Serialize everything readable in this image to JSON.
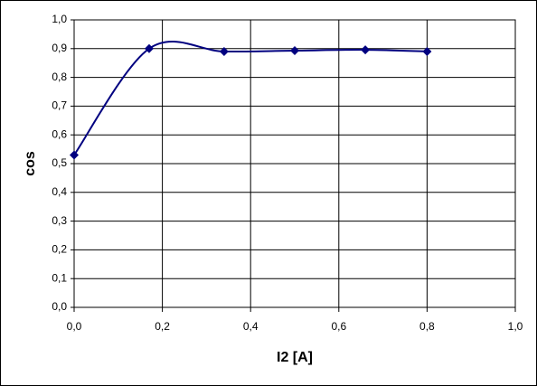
{
  "chart_data": {
    "type": "line",
    "x_label": "I2 [A]",
    "y_label": "cos",
    "x": [
      0,
      0.17,
      0.34,
      0.5,
      0.66,
      0.8
    ],
    "series": [
      {
        "name": "cos",
        "color": "#000080",
        "values": [
          0.53,
          0.9,
          0.89,
          0.893,
          0.896,
          0.89
        ]
      }
    ],
    "xlim": [
      0,
      1
    ],
    "ylim": [
      0,
      1
    ],
    "xticks": [
      {
        "value": 0,
        "label": "0,0"
      },
      {
        "value": 0.2,
        "label": "0,2"
      },
      {
        "value": 0.4,
        "label": "0,4"
      },
      {
        "value": 0.6,
        "label": "0,6"
      },
      {
        "value": 0.8,
        "label": "0,8"
      },
      {
        "value": 1,
        "label": "1,0"
      }
    ],
    "yticks": [
      {
        "value": 0,
        "label": "0,0"
      },
      {
        "value": 0.1,
        "label": "0,1"
      },
      {
        "value": 0.2,
        "label": "0,2"
      },
      {
        "value": 0.3,
        "label": "0,3"
      },
      {
        "value": 0.4,
        "label": "0,4"
      },
      {
        "value": 0.5,
        "label": "0,5"
      },
      {
        "value": 0.6,
        "label": "0,6"
      },
      {
        "value": 0.7,
        "label": "0,7"
      },
      {
        "value": 0.8,
        "label": "0,8"
      },
      {
        "value": 0.9,
        "label": "0,9"
      },
      {
        "value": 1,
        "label": "1,0"
      }
    ],
    "grid": true,
    "smooth": true,
    "marker": "diamond"
  }
}
